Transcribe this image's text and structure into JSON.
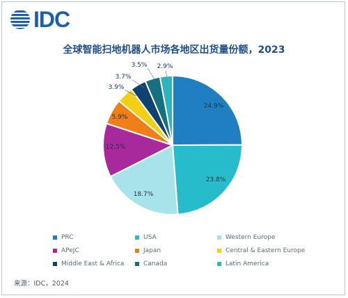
{
  "logo": {
    "text": "IDC",
    "color": "#1f5fa8"
  },
  "chart_data": {
    "type": "pie",
    "title": "全球智能扫地机器人市场各地区出货量份额，2023",
    "categories": [
      "PRC",
      "USA",
      "Western Europe",
      "APeJC",
      "Japan",
      "Central & Eastern Europe",
      "Middle East & Africa",
      "Canada",
      "Latin America"
    ],
    "values": [
      24.9,
      23.8,
      18.7,
      12.5,
      5.9,
      3.9,
      3.7,
      3.5,
      2.9
    ],
    "labels": [
      "24.9%",
      "23.8%",
      "18.7%",
      "12.5%",
      "5.9%",
      "3.9%",
      "3.7%",
      "3.5%",
      "2.9%"
    ],
    "colors": [
      "#1f7fc1",
      "#27bccb",
      "#a9e3ea",
      "#a8299b",
      "#f07f1a",
      "#f4cf17",
      "#10426f",
      "#17707f",
      "#2fb3bd"
    ],
    "start_angle_deg": 0,
    "legend_position": "bottom"
  },
  "source": "来源：IDC，2024"
}
